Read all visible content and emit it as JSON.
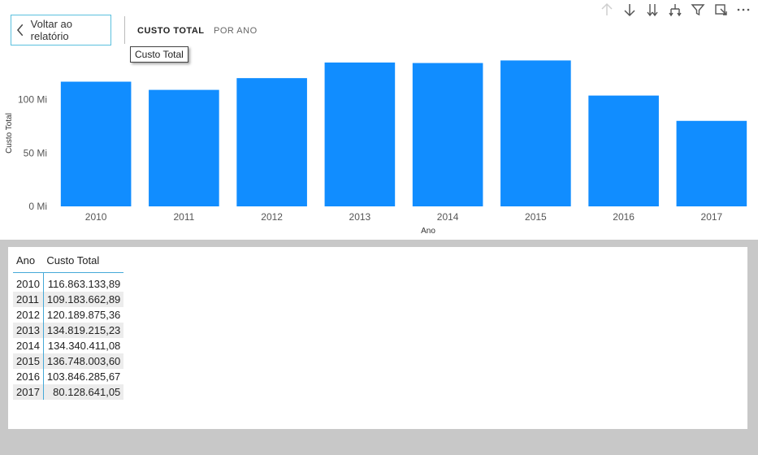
{
  "header": {
    "back_label": "Voltar ao relatório",
    "tabs": [
      {
        "label": "CUSTO TOTAL",
        "active": true
      },
      {
        "label": "POR ANO",
        "active": false
      }
    ],
    "tooltip": "Custo Total"
  },
  "toolbar": {
    "icons": [
      "arrow-up-icon",
      "arrow-down-icon",
      "double-arrow-down-icon",
      "expand-hierarchy-icon",
      "filter-icon",
      "focus-mode-icon",
      "more-options-icon"
    ]
  },
  "chart_data": {
    "type": "bar",
    "categories": [
      "2010",
      "2011",
      "2012",
      "2013",
      "2014",
      "2015",
      "2016",
      "2017"
    ],
    "values": [
      116.86,
      109.18,
      120.19,
      134.82,
      134.34,
      136.75,
      103.85,
      80.13
    ],
    "xlabel": "Ano",
    "ylabel": "Custo Total",
    "yticks": [
      "0 Mi",
      "50 Mi",
      "100 Mi"
    ],
    "ytick_values": [
      0,
      50,
      100
    ],
    "ylim": [
      0,
      150
    ],
    "color": "#118dff",
    "grid": false
  },
  "table": {
    "headers": [
      "Ano",
      "Custo Total"
    ],
    "rows": [
      [
        "2010",
        "116.863.133,89"
      ],
      [
        "2011",
        "109.183.662,89"
      ],
      [
        "2012",
        "120.189.875,36"
      ],
      [
        "2013",
        "134.819.215,23"
      ],
      [
        "2014",
        "134.340.411,08"
      ],
      [
        "2015",
        "136.748.003,60"
      ],
      [
        "2016",
        "103.846.285,67"
      ],
      [
        "2017",
        "80.128.641,05"
      ]
    ]
  }
}
